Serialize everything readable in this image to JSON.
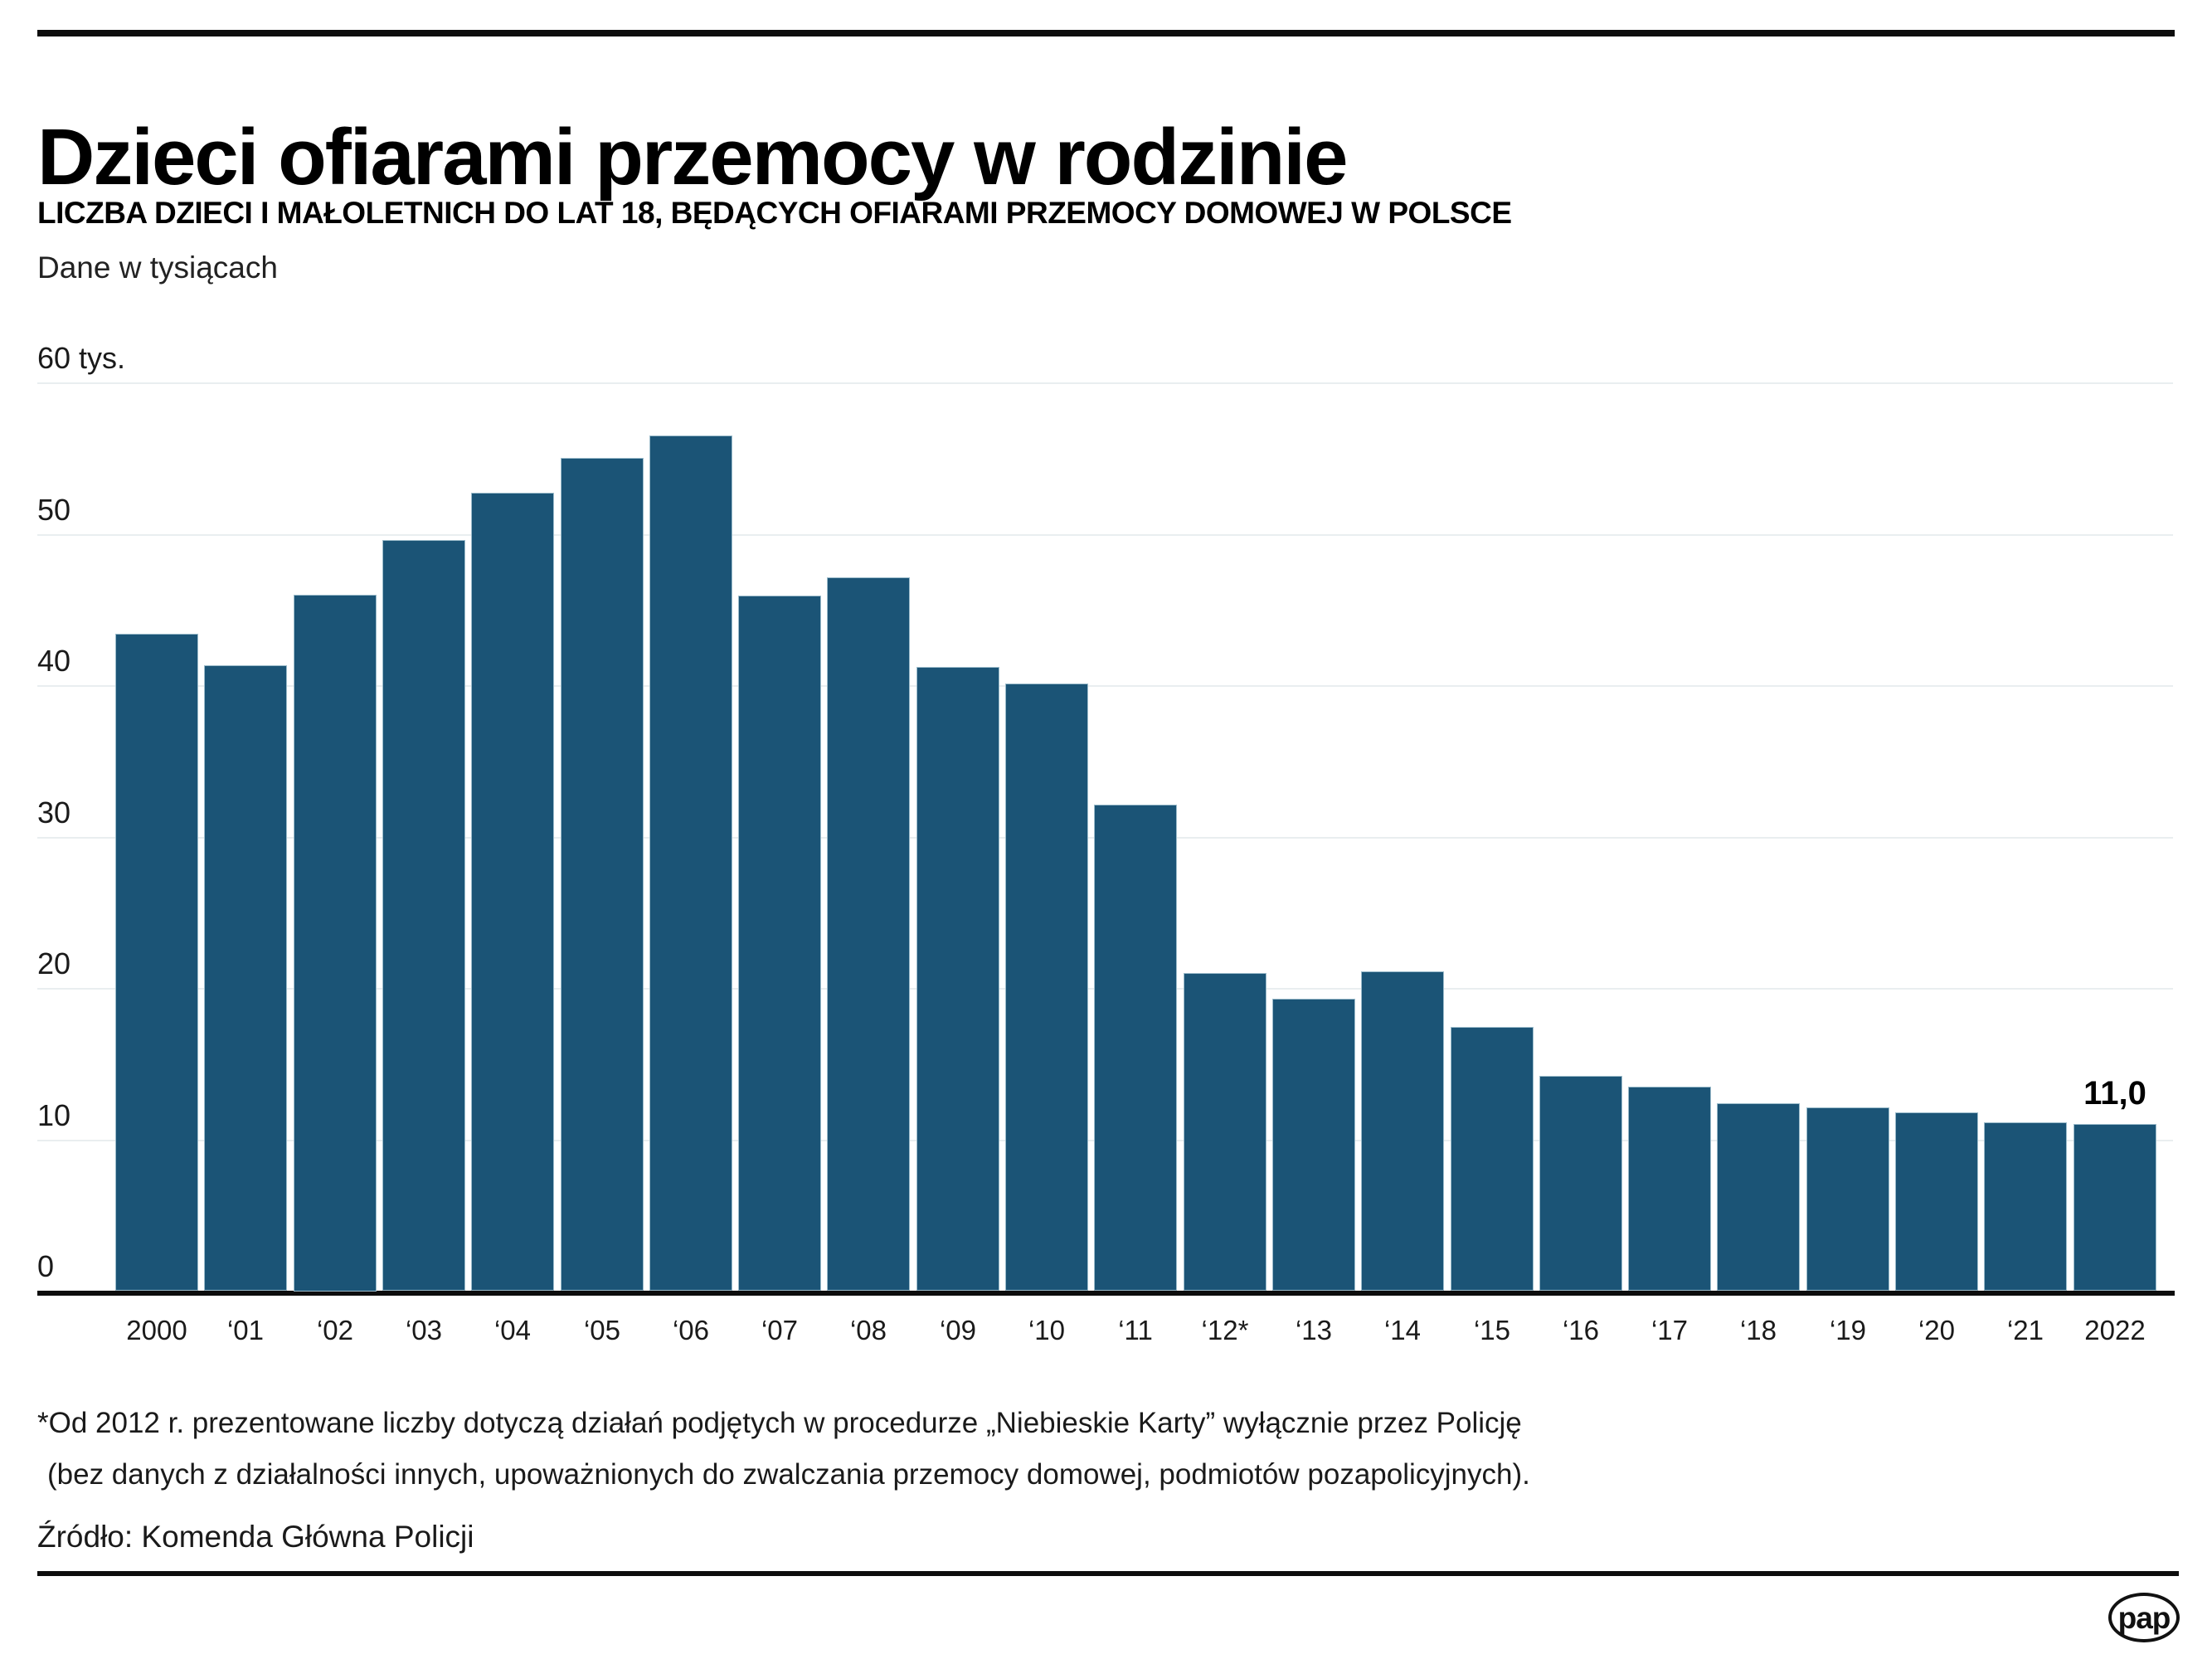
{
  "header": {
    "title": "Dzieci ofiarami przemocy w rodzinie",
    "subtitle": "LICZBA DZIECI I MAŁOLETNICH DO LAT 18, BĘDĄCYCH OFIARAMI PRZEMOCY DOMOWEJ W POLSCE",
    "unit_note": "Dane w tysiącach"
  },
  "chart_data": {
    "type": "bar",
    "title": "Liczba dzieci i małoletnich do lat 18, będących ofiarami przemocy domowej w Polsce",
    "unit": "tys.",
    "categories": [
      "2000",
      "‘01",
      "‘02",
      "‘03",
      "‘04",
      "‘05",
      "‘06",
      "‘07",
      "‘08",
      "‘09",
      "‘10",
      "‘11",
      "‘12*",
      "‘13",
      "‘14",
      "‘15",
      "‘16",
      "‘17",
      "‘18",
      "‘19",
      "‘20",
      "‘21",
      "2022"
    ],
    "values": [
      43.4,
      41.3,
      46.0,
      49.6,
      52.7,
      55.0,
      56.5,
      45.9,
      47.1,
      41.2,
      40.1,
      32.1,
      21.0,
      19.3,
      21.1,
      17.4,
      14.2,
      13.5,
      12.4,
      12.1,
      11.8,
      11.1,
      11.0
    ],
    "ylim": [
      0,
      60
    ],
    "y_ticks": [
      60,
      50,
      40,
      30,
      20,
      10,
      0
    ],
    "y_top_tick_label": "60 tys.",
    "grid": true,
    "legend": "none",
    "last_bar_label": "11,0",
    "bar_color": "#1b5476"
  },
  "footnote": {
    "line1": "*Od 2012 r. prezentowane liczby dotyczą działań podjętych w procedurze „Niebieskie Karty” wyłącznie przez Policję",
    "line2": " (bez danych z działalności innych, upoważnionych do zwalczania przemocy domowej, podmiotów pozapolicyjnych)."
  },
  "source": "Źródło: Komenda Główna Policji",
  "branding": {
    "logo_text": "pap"
  }
}
